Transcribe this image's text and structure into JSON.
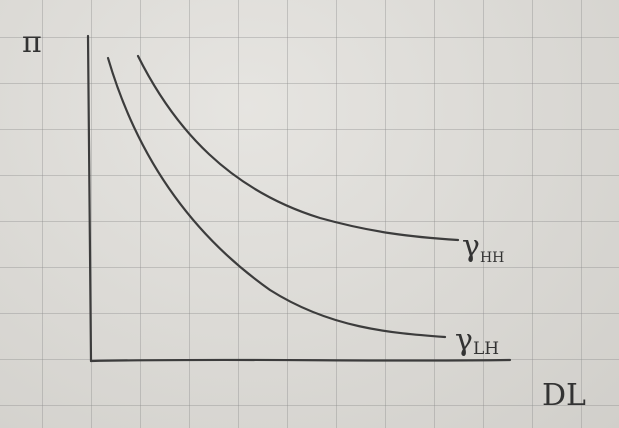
{
  "axes": {
    "y_label": "π",
    "x_label": "DL"
  },
  "curves": [
    {
      "label_main": "γ",
      "label_sub": "HH"
    },
    {
      "label_main": "γ",
      "label_sub": "LH"
    }
  ],
  "colors": {
    "ink": "#3c3c3c",
    "paper": "#dedcd7",
    "grid": "#8c8c8c"
  }
}
